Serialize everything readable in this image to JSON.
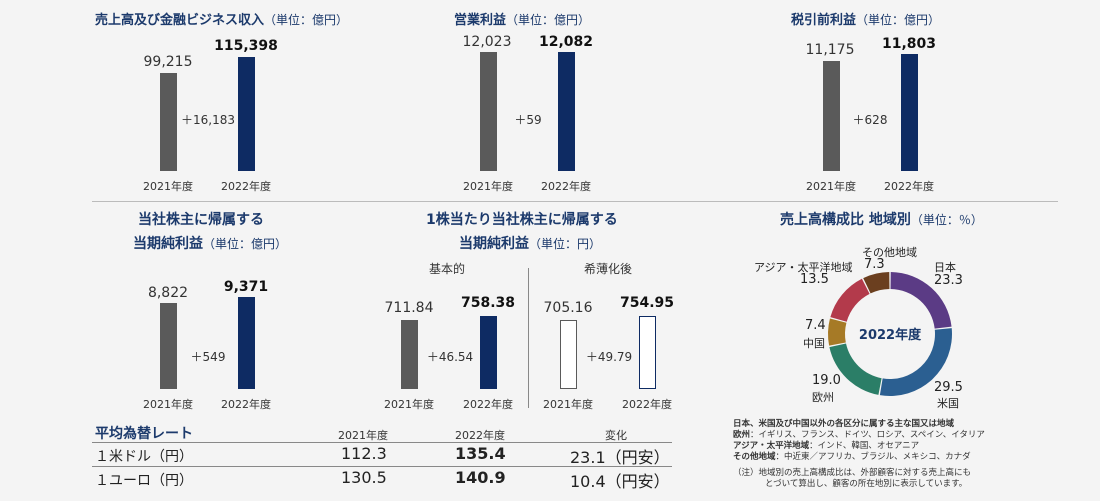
{
  "chart_data": [
    {
      "type": "bar",
      "id": "revenue",
      "title": "売上高及び金融ビジネス収入",
      "unit": "（単位：億円）",
      "categories": [
        "2021年度",
        "2022年度"
      ],
      "value_labels": [
        "99,215",
        "115,398"
      ],
      "values": [
        99215,
        115398
      ],
      "diff": "＋16,183"
    },
    {
      "type": "bar",
      "id": "op",
      "title": "営業利益",
      "unit": "（単位：億円）",
      "categories": [
        "2021年度",
        "2022年度"
      ],
      "value_labels": [
        "12,023",
        "12,082"
      ],
      "values": [
        12023,
        12082
      ],
      "diff": "＋59"
    },
    {
      "type": "bar",
      "id": "pretax",
      "title": "税引前利益",
      "unit": "（単位：億円）",
      "categories": [
        "2021年度",
        "2022年度"
      ],
      "value_labels": [
        "11,175",
        "11,803"
      ],
      "values": [
        11175,
        11803
      ],
      "diff": "＋628"
    },
    {
      "type": "bar",
      "id": "net",
      "title": "当社株主に帰属する",
      "title2": "当期純利益",
      "unit": "（単位：億円）",
      "categories": [
        "2021年度",
        "2022年度"
      ],
      "value_labels": [
        "8,822",
        "9,371"
      ],
      "values": [
        8822,
        9371
      ],
      "diff": "＋549"
    },
    {
      "type": "bar",
      "id": "eps",
      "title": "1株当たり当社株主に帰属する",
      "title2": "当期純利益",
      "unit": "（単位：円）",
      "groups": [
        {
          "label": "基本的",
          "categories": [
            "2021年度",
            "2022年度"
          ],
          "value_labels": [
            "711.84",
            "758.38"
          ],
          "values": [
            711.84,
            758.38
          ],
          "diff": "＋46.54"
        },
        {
          "label": "希薄化後",
          "categories": [
            "2021年度",
            "2022年度"
          ],
          "value_labels": [
            "705.16",
            "754.95"
          ],
          "values": [
            705.16,
            754.95
          ],
          "diff": "＋49.79"
        }
      ]
    },
    {
      "type": "pie",
      "id": "region",
      "title": "売上高構成比 地域別",
      "unit": "（単位：％）",
      "center_label": "2022年度",
      "slices": [
        {
          "name": "日本",
          "value": 23.3,
          "label": "23.3",
          "color": "#5b3b85"
        },
        {
          "name": "米国",
          "value": 29.5,
          "label": "29.5",
          "color": "#2b5f91"
        },
        {
          "name": "欧州",
          "value": 19.0,
          "label": "19.0",
          "color": "#2b7e67"
        },
        {
          "name": "中国",
          "value": 7.4,
          "label": "7.4",
          "color": "#a67a26"
        },
        {
          "name": "アジア・太平洋地域",
          "value": 13.5,
          "label": "13.5",
          "color": "#b33a4b"
        },
        {
          "name": "その他地域",
          "value": 7.3,
          "label": "7.3",
          "color": "#6b3f1f"
        }
      ]
    }
  ],
  "fx": {
    "title": "平均為替レート",
    "headers": [
      "2021年度",
      "2022年度",
      "変化"
    ],
    "rows": [
      {
        "label": "１米ドル（円）",
        "y2021": "112.3",
        "y2022": "135.4",
        "change": "23.1（円安）"
      },
      {
        "label": "１ユーロ（円）",
        "y2021": "130.5",
        "y2022": "140.9",
        "change": "10.4（円安）"
      }
    ]
  },
  "region_notes": {
    "heading": "日本、米国及び中国以外の各区分に属する主な国又は地域",
    "lines": [
      {
        "k": "欧州",
        "v": "：イギリス、フランス、ドイツ、ロシア、スペイン、イタリア"
      },
      {
        "k": "アジア・太平洋地域",
        "v": "：インド、韓国、オセアニア"
      },
      {
        "k": "その他地域",
        "v": "：中近東／アフリカ、ブラジル、メキシコ、カナダ"
      }
    ],
    "footnote1": "（注）地域別の売上高構成比は、外部顧客に対する売上高にも",
    "footnote2": "とづいて算出し、顧客の所在地別に表示しています。"
  }
}
